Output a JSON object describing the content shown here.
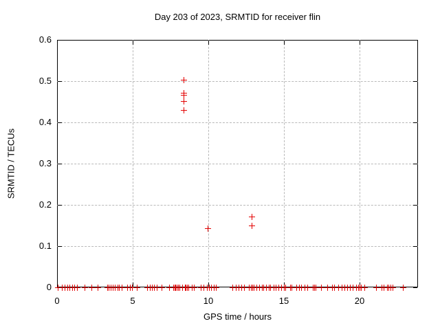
{
  "chart_data": {
    "type": "scatter",
    "title": "Day 203 of 2023, SRMTID for receiver flin",
    "xlabel": "GPS time / hours",
    "ylabel": "SRMTID / TECUs",
    "xlim": [
      0,
      23.86
    ],
    "ylim": [
      0,
      0.6
    ],
    "xticks": [
      0,
      5,
      10,
      15,
      20
    ],
    "xtick_labels": [
      "0",
      "5",
      "10",
      "15",
      "20"
    ],
    "yticks": [
      0,
      0.1,
      0.2,
      0.3,
      0.4,
      0.5,
      0.6
    ],
    "ytick_labels": [
      "0",
      "0.1",
      "0.2",
      "0.3",
      "0.4",
      "0.5",
      "0.6"
    ],
    "grid": true,
    "legend": "none",
    "marker": "plus",
    "marker_color": "#e30000",
    "background_color": "#ffffff",
    "grid_color": "#b8b8b8",
    "series": [
      {
        "name": "SRMTID",
        "points": [
          [
            8.38,
            0.503
          ],
          [
            8.35,
            0.472
          ],
          [
            8.35,
            0.466
          ],
          [
            8.35,
            0.451
          ],
          [
            8.35,
            0.43
          ],
          [
            9.95,
            0.144
          ],
          [
            12.87,
            0.172
          ],
          [
            12.87,
            0.15
          ],
          [
            0.05,
            0
          ],
          [
            0.3,
            0
          ],
          [
            0.5,
            0
          ],
          [
            0.7,
            0
          ],
          [
            0.8,
            0
          ],
          [
            1.0,
            0
          ],
          [
            1.15,
            0
          ],
          [
            1.3,
            0
          ],
          [
            1.8,
            0
          ],
          [
            2.25,
            0
          ],
          [
            2.7,
            0
          ],
          [
            3.3,
            0
          ],
          [
            3.4,
            0
          ],
          [
            3.55,
            0
          ],
          [
            3.7,
            0
          ],
          [
            3.8,
            0
          ],
          [
            4.0,
            0
          ],
          [
            4.1,
            0
          ],
          [
            4.25,
            0
          ],
          [
            4.65,
            0
          ],
          [
            4.8,
            0
          ],
          [
            4.95,
            0
          ],
          [
            5.25,
            0
          ],
          [
            5.95,
            0
          ],
          [
            6.15,
            0
          ],
          [
            6.25,
            0
          ],
          [
            6.4,
            0
          ],
          [
            6.6,
            0
          ],
          [
            6.9,
            0
          ],
          [
            7.4,
            0
          ],
          [
            7.7,
            0
          ],
          [
            7.75,
            0
          ],
          [
            7.8,
            0
          ],
          [
            7.9,
            0
          ],
          [
            8.0,
            0
          ],
          [
            8.1,
            0
          ],
          [
            8.25,
            0
          ],
          [
            8.45,
            0
          ],
          [
            8.5,
            0
          ],
          [
            8.6,
            0
          ],
          [
            8.7,
            0
          ],
          [
            8.9,
            0
          ],
          [
            9.05,
            0
          ],
          [
            9.5,
            0
          ],
          [
            9.7,
            0
          ],
          [
            9.9,
            0
          ],
          [
            10.05,
            0
          ],
          [
            10.2,
            0
          ],
          [
            10.35,
            0
          ],
          [
            10.5,
            0
          ],
          [
            11.6,
            0
          ],
          [
            11.8,
            0
          ],
          [
            12.0,
            0
          ],
          [
            12.2,
            0
          ],
          [
            12.35,
            0
          ],
          [
            12.7,
            0
          ],
          [
            12.8,
            0
          ],
          [
            12.9,
            0
          ],
          [
            13.0,
            0
          ],
          [
            13.2,
            0
          ],
          [
            13.35,
            0
          ],
          [
            13.55,
            0
          ],
          [
            13.65,
            0
          ],
          [
            13.8,
            0
          ],
          [
            14.0,
            0
          ],
          [
            14.1,
            0
          ],
          [
            14.3,
            0
          ],
          [
            14.45,
            0
          ],
          [
            14.65,
            0
          ],
          [
            14.8,
            0
          ],
          [
            15.0,
            0
          ],
          [
            15.1,
            0
          ],
          [
            15.4,
            0
          ],
          [
            15.5,
            0
          ],
          [
            15.8,
            0
          ],
          [
            16.0,
            0
          ],
          [
            16.15,
            0
          ],
          [
            16.35,
            0
          ],
          [
            16.55,
            0
          ],
          [
            16.9,
            0
          ],
          [
            17.0,
            0
          ],
          [
            17.1,
            0
          ],
          [
            17.45,
            0
          ],
          [
            17.85,
            0
          ],
          [
            18.2,
            0
          ],
          [
            18.3,
            0
          ],
          [
            18.6,
            0
          ],
          [
            18.8,
            0
          ],
          [
            19.0,
            0
          ],
          [
            19.2,
            0
          ],
          [
            19.35,
            0
          ],
          [
            19.55,
            0
          ],
          [
            19.75,
            0
          ],
          [
            19.9,
            0
          ],
          [
            20.0,
            0
          ],
          [
            20.1,
            0
          ],
          [
            20.3,
            0
          ],
          [
            21.1,
            0
          ],
          [
            21.45,
            0
          ],
          [
            21.6,
            0
          ],
          [
            21.8,
            0
          ],
          [
            21.9,
            0
          ],
          [
            22.05,
            0
          ],
          [
            22.2,
            0
          ],
          [
            22.85,
            0
          ]
        ]
      }
    ]
  }
}
